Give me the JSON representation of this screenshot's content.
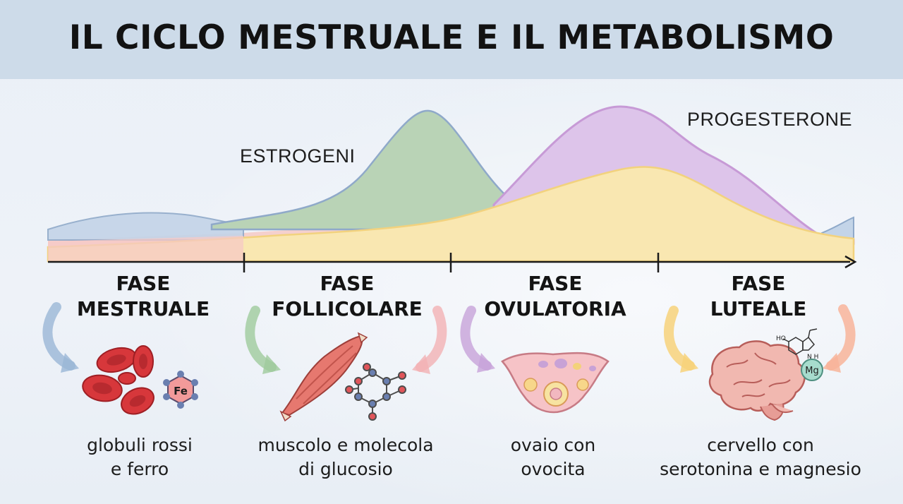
{
  "title": "IL CICLO MESTRUALE E IL METABOLISMO",
  "curves": {
    "estrogen_label": "ESTROGENI",
    "progesterone_label": "PROGESTERONE",
    "colors": {
      "estrogen": "#b9d3b6",
      "progesterone": "#ddc4ea",
      "yellow": "#f9e7b1",
      "pink": "#f6c9c6",
      "blue": "#c3d4e8"
    }
  },
  "phases": [
    {
      "line1": "FASE",
      "line2": "MESTRUALE",
      "caption1": "globuli rossi",
      "caption2": "e ferro",
      "icon": "red-blood-cells-icon"
    },
    {
      "line1": "FASE",
      "line2": "FOLLICOLARE",
      "caption1": "muscolo e molecola",
      "caption2": "di glucosio",
      "icon": "muscle-icon"
    },
    {
      "line1": "FASE",
      "line2": "OVULATORIA",
      "caption1": "ovaio con",
      "caption2": "ovocita",
      "icon": "ovary-icon"
    },
    {
      "line1": "FASE",
      "line2": "LUTEALE",
      "caption1": "cervello con",
      "caption2": "serotonina e magnesio",
      "icon": "brain-icon"
    }
  ],
  "symbols": {
    "iron": "Fe",
    "magnesium": "Mg",
    "serotonin_ho": "HO",
    "serotonin_nh": "N\nH"
  }
}
